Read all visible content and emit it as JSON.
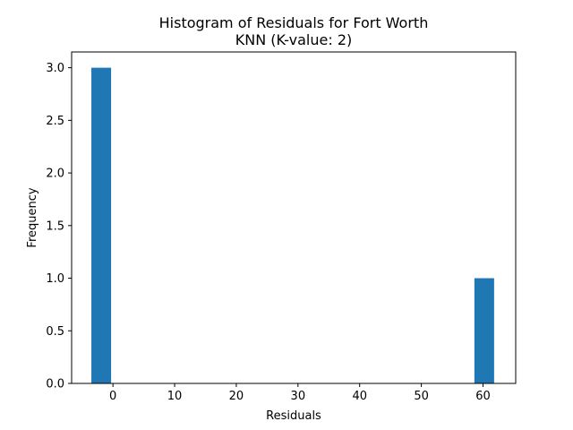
{
  "chart_data": {
    "type": "bar",
    "title": "Histogram of Residuals for Fort Worth",
    "subtitle": "KNN (K-value: 2)",
    "xlabel": "Residuals",
    "ylabel": "Frequency",
    "xlim": [
      -6.7,
      65.3
    ],
    "ylim": [
      0,
      3.15
    ],
    "x_ticks": [
      0,
      10,
      20,
      30,
      40,
      50,
      60
    ],
    "y_ticks": [
      0.0,
      0.5,
      1.0,
      1.5,
      2.0,
      2.5,
      3.0
    ],
    "x_tick_labels": [
      "0",
      "10",
      "20",
      "30",
      "40",
      "50",
      "60"
    ],
    "y_tick_labels": [
      "0.0",
      "0.5",
      "1.0",
      "1.5",
      "2.0",
      "2.5",
      "3.0"
    ],
    "bins": [
      {
        "start": -3.5,
        "end": -0.3,
        "value": 3
      },
      {
        "start": 58.6,
        "end": 61.8,
        "value": 1
      }
    ],
    "bar_color": "#1f77b4",
    "grid": false,
    "legend": "none"
  }
}
